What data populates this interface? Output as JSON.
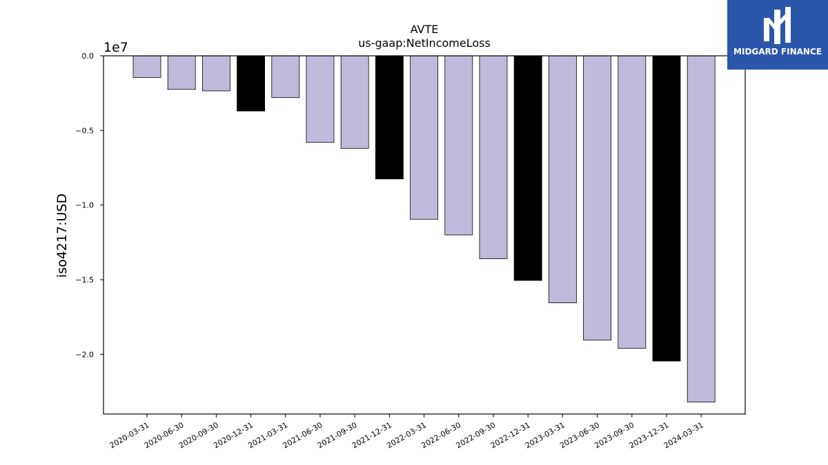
{
  "chart_data": {
    "type": "bar",
    "title": "AVTE",
    "subtitle": "us-gaap:NetIncomeLoss",
    "ylabel": "iso4217:USD",
    "xlabel": "",
    "offset_label": "1e7",
    "ylim": [
      -24000000,
      0
    ],
    "yticks": [
      0,
      -5000000,
      -10000000,
      -15000000,
      -20000000
    ],
    "ytick_labels": [
      "0.0",
      "−0.5",
      "−1.0",
      "−1.5",
      "−2.0"
    ],
    "categories": [
      "2020-03-31",
      "2020-06-30",
      "2020-09-30",
      "2020-12-31",
      "2021-03-31",
      "2021-06-30",
      "2021-09-30",
      "2021-12-31",
      "2022-03-31",
      "2022-06-30",
      "2022-09-30",
      "2022-12-31",
      "2023-03-31",
      "2023-06-30",
      "2023-09-30",
      "2023-12-31",
      "2024-03-31"
    ],
    "values": [
      -1450000,
      -2250000,
      -2350000,
      -3700000,
      -2800000,
      -5800000,
      -6200000,
      -8250000,
      -10950000,
      -12000000,
      -13600000,
      -15050000,
      -16550000,
      -19050000,
      -19600000,
      -20450000,
      -23200000
    ],
    "bar_colors": [
      "#bfbbdb",
      "#bfbbdb",
      "#bfbbdb",
      "#000000",
      "#bfbbdb",
      "#bfbbdb",
      "#bfbbdb",
      "#000000",
      "#bfbbdb",
      "#bfbbdb",
      "#bfbbdb",
      "#000000",
      "#bfbbdb",
      "#bfbbdb",
      "#bfbbdb",
      "#000000",
      "#bfbbdb"
    ],
    "grid": false,
    "legend": "none"
  },
  "logo": {
    "text": "MIDGARD FINANCE",
    "background": "#2b57ab"
  }
}
